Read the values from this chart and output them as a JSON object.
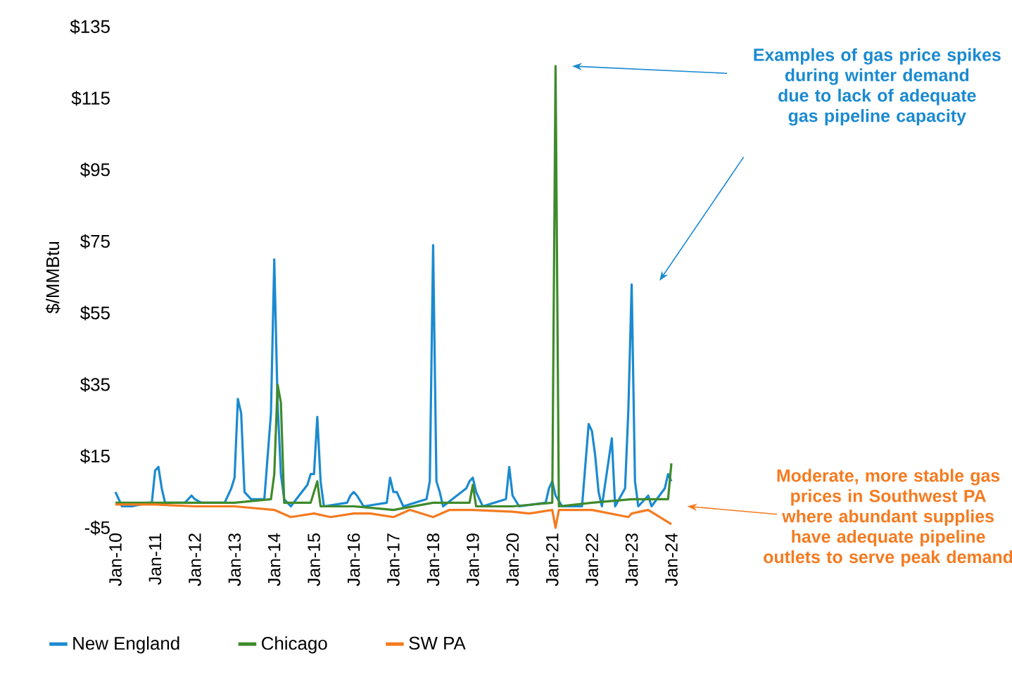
{
  "chart_data": {
    "type": "line",
    "ylabel": "$/MMBtu",
    "legend": "bottom",
    "xlim": [
      "2010-01",
      "2024-01"
    ],
    "ylim": [
      -5,
      135
    ],
    "xticks": [
      {
        "value": "2010-01",
        "label": "Jan-10"
      },
      {
        "value": "2011-01",
        "label": "Jan-11"
      },
      {
        "value": "2012-01",
        "label": "Jan-12"
      },
      {
        "value": "2013-01",
        "label": "Jan-13"
      },
      {
        "value": "2014-01",
        "label": "Jan-14"
      },
      {
        "value": "2015-01",
        "label": "Jan-15"
      },
      {
        "value": "2016-01",
        "label": "Jan-16"
      },
      {
        "value": "2017-01",
        "label": "Jan-17"
      },
      {
        "value": "2018-01",
        "label": "Jan-18"
      },
      {
        "value": "2019-01",
        "label": "Jan-19"
      },
      {
        "value": "2020-01",
        "label": "Jan-20"
      },
      {
        "value": "2021-01",
        "label": "Jan-21"
      },
      {
        "value": "2022-01",
        "label": "Jan-22"
      },
      {
        "value": "2023-01",
        "label": "Jan-23"
      },
      {
        "value": "2024-01",
        "label": "Jan-24"
      }
    ],
    "yticks": [
      {
        "value": -5,
        "label": "-$5"
      },
      {
        "value": 15,
        "label": "$15"
      },
      {
        "value": 35,
        "label": "$35"
      },
      {
        "value": 55,
        "label": "$55"
      },
      {
        "value": 75,
        "label": "$75"
      },
      {
        "value": 95,
        "label": "$95"
      },
      {
        "value": 115,
        "label": "$115"
      },
      {
        "value": 135,
        "label": "$135"
      }
    ],
    "series": [
      {
        "name": "New England",
        "color": "#1b8ad0",
        "x": [
          "2010-01",
          "2010-02",
          "2010-03",
          "2010-06",
          "2010-11",
          "2010-12",
          "2011-01",
          "2011-02",
          "2011-03",
          "2011-04",
          "2011-10",
          "2011-12",
          "2012-01",
          "2012-03",
          "2012-10",
          "2012-12",
          "2013-01",
          "2013-02",
          "2013-03",
          "2013-04",
          "2013-06",
          "2013-10",
          "2013-12",
          "2014-01",
          "2014-02",
          "2014-03",
          "2014-04",
          "2014-06",
          "2014-11",
          "2014-12",
          "2015-01",
          "2015-02",
          "2015-03",
          "2015-04",
          "2015-11",
          "2015-12",
          "2016-01",
          "2016-02",
          "2016-04",
          "2016-11",
          "2016-12",
          "2017-01",
          "2017-02",
          "2017-04",
          "2017-11",
          "2017-12",
          "2018-01",
          "2018-02",
          "2018-03",
          "2018-04",
          "2018-11",
          "2018-12",
          "2019-01",
          "2019-02",
          "2019-04",
          "2019-11",
          "2019-12",
          "2020-01",
          "2020-03",
          "2020-11",
          "2020-12",
          "2021-01",
          "2021-02",
          "2021-04",
          "2021-10",
          "2021-12",
          "2022-01",
          "2022-02",
          "2022-03",
          "2022-04",
          "2022-07",
          "2022-08",
          "2022-11",
          "2022-12",
          "2023-01",
          "2023-02",
          "2023-03",
          "2023-06",
          "2023-07",
          "2023-11",
          "2023-12",
          "2024-01"
        ],
        "values": [
          5,
          3,
          1,
          1,
          2,
          2,
          11,
          12,
          6,
          2,
          2,
          4,
          3,
          2,
          2,
          6,
          9,
          31,
          27,
          5,
          3,
          3,
          27,
          70,
          30,
          10,
          3,
          1,
          7,
          10,
          10,
          26,
          8,
          1,
          2,
          4,
          5,
          4,
          1,
          2,
          9,
          5,
          5,
          1,
          3,
          8,
          74,
          8,
          5,
          1,
          6,
          8,
          9,
          5,
          1,
          3,
          12,
          4,
          1,
          2,
          6,
          8,
          4,
          1,
          1,
          24,
          22,
          15,
          5,
          1,
          20,
          1,
          6,
          28,
          63,
          8,
          1,
          4,
          1,
          6,
          10,
          8
        ]
      },
      {
        "name": "Chicago",
        "color": "#3f8a2c",
        "x": [
          "2010-01",
          "2011-01",
          "2012-01",
          "2013-01",
          "2013-12",
          "2014-01",
          "2014-02",
          "2014-03",
          "2014-04",
          "2014-12",
          "2015-02",
          "2015-03",
          "2016-01",
          "2017-01",
          "2018-01",
          "2018-12",
          "2019-01",
          "2019-02",
          "2020-01",
          "2021-01",
          "2021-02",
          "2021-03",
          "2022-01",
          "2023-01",
          "2023-12",
          "2024-01"
        ],
        "values": [
          2,
          2,
          2,
          2,
          3,
          10,
          35,
          30,
          2,
          2,
          8,
          1,
          1,
          0,
          2,
          2,
          7,
          1,
          1,
          2,
          124,
          1,
          2,
          3,
          3,
          13
        ]
      },
      {
        "name": "SW PA",
        "color": "#f47b20",
        "x": [
          "2010-01",
          "2011-01",
          "2012-01",
          "2013-01",
          "2014-01",
          "2014-06",
          "2015-01",
          "2015-06",
          "2016-01",
          "2016-06",
          "2017-01",
          "2017-06",
          "2018-01",
          "2018-06",
          "2019-01",
          "2020-01",
          "2020-06",
          "2021-01",
          "2021-02",
          "2021-03",
          "2022-01",
          "2022-12",
          "2023-01",
          "2023-06",
          "2024-01"
        ],
        "values": [
          1.5,
          1.5,
          1,
          1,
          0,
          -2,
          -1,
          -2,
          -1,
          -1,
          -2,
          0,
          -2,
          0,
          0,
          -0.5,
          -1,
          0,
          -5,
          0,
          0,
          -2,
          -1,
          0,
          -4
        ]
      }
    ],
    "annotations": [
      "**Examples of gas price spikes during winter demand due to lack of adequate gas pipeline capacity**",
      "**Moderate, more stable gas prices in Southwest PA where abundant supplies have adequate pipeline outlets to serve peak demand**"
    ]
  }
}
